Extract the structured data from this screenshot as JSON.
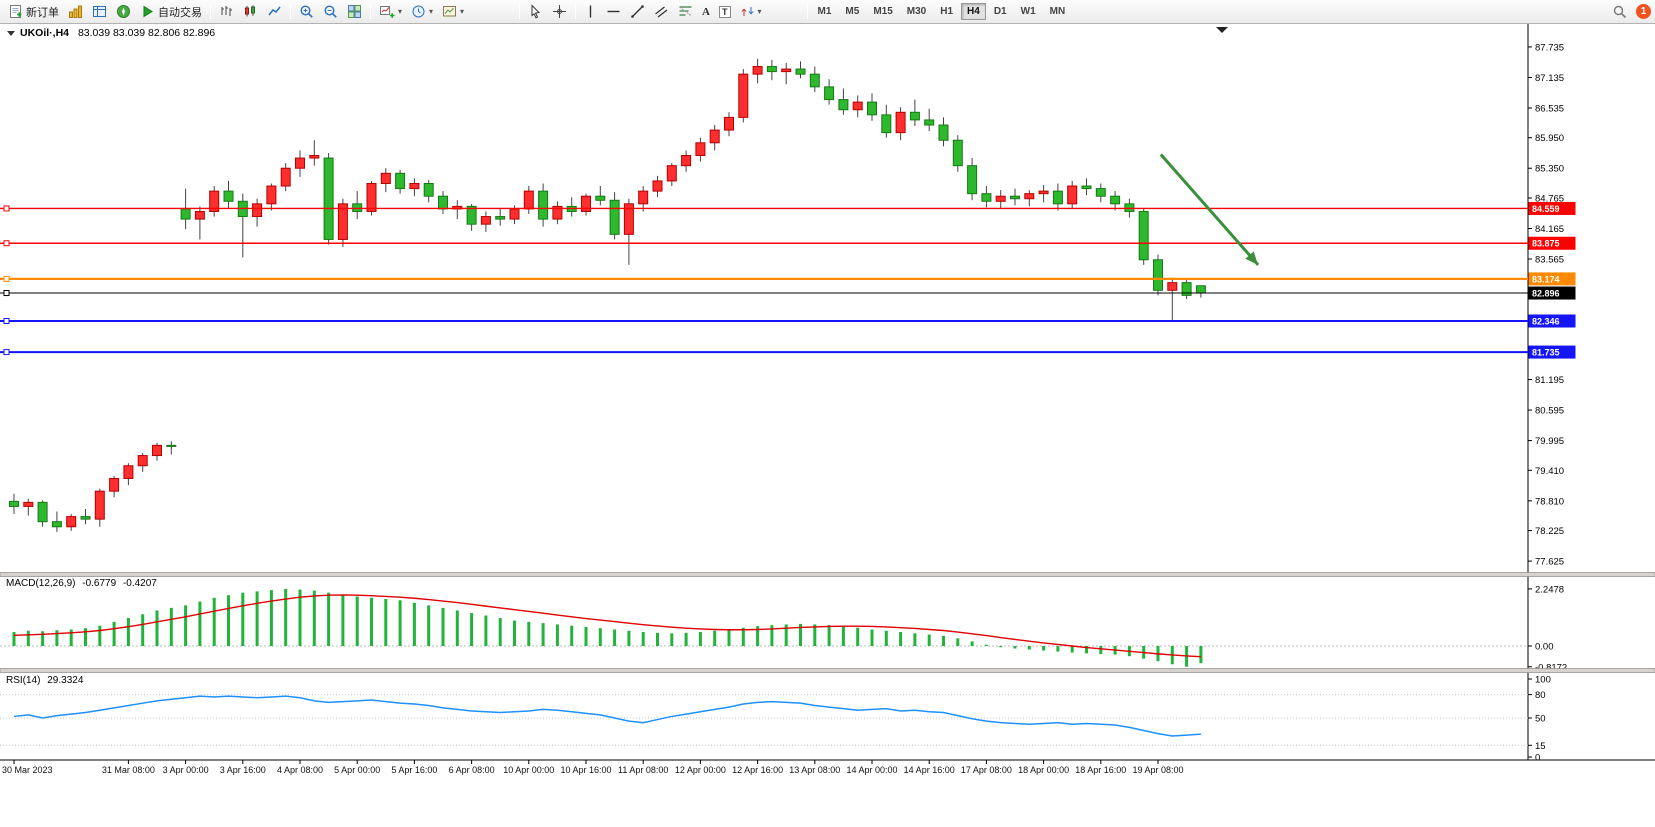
{
  "toolbar": {
    "new_order": "新订单",
    "autotrade": "自动交易",
    "timeframes": [
      "M1",
      "M5",
      "M15",
      "M30",
      "H1",
      "H4",
      "D1",
      "W1",
      "MN"
    ],
    "active_timeframe": "H4",
    "notification_count": "1",
    "glyphs": {
      "caret": "▾",
      "text_tool": "A",
      "label_tool": "T"
    }
  },
  "chart": {
    "symbol_title": "UKOil·,H4",
    "ohlc_text": "83.039 83.039 82.806 82.896",
    "current_price": 82.896,
    "price_axis_labels": [
      87.735,
      87.135,
      86.535,
      85.95,
      85.35,
      84.765,
      84.165,
      83.565,
      81.195,
      80.595,
      79.995,
      79.41,
      78.81,
      78.225,
      77.625
    ],
    "hlines": [
      {
        "price": 84.559,
        "color": "#ff0000",
        "width": 1.4
      },
      {
        "price": 83.875,
        "color": "#ff0000",
        "width": 1.4
      },
      {
        "price": 83.174,
        "color": "#ff8a00",
        "width": 2.2
      },
      {
        "price": 82.896,
        "color": "#000000",
        "width": 1.0
      },
      {
        "price": 82.346,
        "color": "#1414ff",
        "width": 2.0
      },
      {
        "price": 81.735,
        "color": "#1414ff",
        "width": 2.0
      }
    ],
    "arrow": {
      "from_index": 80.2,
      "from_price": 85.62,
      "to_index": 87.0,
      "to_price": 83.45,
      "color": "#3a8f3a"
    },
    "time_labels": [
      {
        "i": 0,
        "t": "30 Mar 2023"
      },
      {
        "i": 8,
        "t": "31 Mar 08:00"
      },
      {
        "i": 12,
        "t": "3 Apr 00:00"
      },
      {
        "i": 16,
        "t": "3 Apr 16:00"
      },
      {
        "i": 20,
        "t": "4 Apr 08:00"
      },
      {
        "i": 24,
        "t": "5 Apr 00:00"
      },
      {
        "i": 28,
        "t": "5 Apr 16:00"
      },
      {
        "i": 32,
        "t": "6 Apr 08:00"
      },
      {
        "i": 36,
        "t": "10 Apr 00:00"
      },
      {
        "i": 40,
        "t": "10 Apr 16:00"
      },
      {
        "i": 44,
        "t": "11 Apr 08:00"
      },
      {
        "i": 48,
        "t": "12 Apr 00:00"
      },
      {
        "i": 52,
        "t": "12 Apr 16:00"
      },
      {
        "i": 56,
        "t": "13 Apr 08:00"
      },
      {
        "i": 60,
        "t": "14 Apr 00:00"
      },
      {
        "i": 64,
        "t": "14 Apr 16:00"
      },
      {
        "i": 68,
        "t": "17 Apr 08:00"
      },
      {
        "i": 72,
        "t": "18 Apr 00:00"
      },
      {
        "i": 76,
        "t": "18 Apr 16:00"
      },
      {
        "i": 80,
        "t": "19 Apr 08:00"
      }
    ],
    "colors": {
      "bull": "#ff2e2e",
      "bull_border": "#b40000",
      "bear": "#2eb82e",
      "bear_border": "#157a15",
      "wick": "#444444",
      "macd_histogram": "#22b43a",
      "macd_signal": "#e00000",
      "rsi_line": "#1e90ff",
      "tag_text": "#ffffff"
    }
  },
  "chart_data": {
    "type": "candlestick",
    "symbol": "UKOil",
    "timeframe": "H4",
    "ylim": [
      77.45,
      87.95
    ],
    "candles_ohlc": [
      [
        78.8,
        78.95,
        78.55,
        78.7
      ],
      [
        78.7,
        78.85,
        78.52,
        78.78
      ],
      [
        78.78,
        78.82,
        78.3,
        78.4
      ],
      [
        78.4,
        78.6,
        78.2,
        78.3
      ],
      [
        78.3,
        78.55,
        78.22,
        78.5
      ],
      [
        78.5,
        78.65,
        78.35,
        78.45
      ],
      [
        78.45,
        79.05,
        78.3,
        79.0
      ],
      [
        79.0,
        79.3,
        78.88,
        79.25
      ],
      [
        79.25,
        79.55,
        79.12,
        79.5
      ],
      [
        79.5,
        79.75,
        79.38,
        79.7
      ],
      [
        79.7,
        79.95,
        79.6,
        79.9
      ],
      [
        79.9,
        79.98,
        79.72,
        79.88
      ],
      [
        84.55,
        84.95,
        84.15,
        84.35
      ],
      [
        84.35,
        84.6,
        83.95,
        84.5
      ],
      [
        84.5,
        85.0,
        84.4,
        84.9
      ],
      [
        84.9,
        85.1,
        84.55,
        84.7
      ],
      [
        84.7,
        84.85,
        83.6,
        84.4
      ],
      [
        84.4,
        84.75,
        84.2,
        84.65
      ],
      [
        84.65,
        85.05,
        84.52,
        85.0
      ],
      [
        85.0,
        85.45,
        84.9,
        85.35
      ],
      [
        85.35,
        85.7,
        85.18,
        85.55
      ],
      [
        85.55,
        85.9,
        85.4,
        85.6
      ],
      [
        85.55,
        85.65,
        83.85,
        83.95
      ],
      [
        83.95,
        84.75,
        83.8,
        84.65
      ],
      [
        84.65,
        84.9,
        84.35,
        84.5
      ],
      [
        84.5,
        85.1,
        84.42,
        85.05
      ],
      [
        85.05,
        85.35,
        84.88,
        85.25
      ],
      [
        85.25,
        85.32,
        84.85,
        84.95
      ],
      [
        84.95,
        85.15,
        84.8,
        85.05
      ],
      [
        85.05,
        85.12,
        84.68,
        84.8
      ],
      [
        84.8,
        84.9,
        84.45,
        84.55
      ],
      [
        84.55,
        84.72,
        84.35,
        84.6
      ],
      [
        84.6,
        84.65,
        84.12,
        84.25
      ],
      [
        84.25,
        84.5,
        84.1,
        84.4
      ],
      [
        84.4,
        84.55,
        84.22,
        84.35
      ],
      [
        84.35,
        84.62,
        84.25,
        84.55
      ],
      [
        84.55,
        85.0,
        84.45,
        84.9
      ],
      [
        84.9,
        85.05,
        84.2,
        84.35
      ],
      [
        84.35,
        84.7,
        84.25,
        84.6
      ],
      [
        84.6,
        84.78,
        84.4,
        84.5
      ],
      [
        84.5,
        84.85,
        84.42,
        84.8
      ],
      [
        84.8,
        85.0,
        84.62,
        84.72
      ],
      [
        84.72,
        84.88,
        83.95,
        84.05
      ],
      [
        84.05,
        84.75,
        83.45,
        84.65
      ],
      [
        84.65,
        85.0,
        84.5,
        84.9
      ],
      [
        84.9,
        85.2,
        84.78,
        85.1
      ],
      [
        85.1,
        85.45,
        85.0,
        85.4
      ],
      [
        85.4,
        85.7,
        85.28,
        85.6
      ],
      [
        85.6,
        85.95,
        85.48,
        85.85
      ],
      [
        85.85,
        86.2,
        85.7,
        86.1
      ],
      [
        86.1,
        86.45,
        85.98,
        86.35
      ],
      [
        86.35,
        87.3,
        86.25,
        87.2
      ],
      [
        87.2,
        87.5,
        87.02,
        87.35
      ],
      [
        87.35,
        87.48,
        87.08,
        87.25
      ],
      [
        87.25,
        87.42,
        87.0,
        87.3
      ],
      [
        87.3,
        87.45,
        87.12,
        87.2
      ],
      [
        87.2,
        87.35,
        86.85,
        86.95
      ],
      [
        86.95,
        87.1,
        86.6,
        86.7
      ],
      [
        86.7,
        86.92,
        86.4,
        86.5
      ],
      [
        86.5,
        86.78,
        86.35,
        86.65
      ],
      [
        86.65,
        86.82,
        86.28,
        86.4
      ],
      [
        86.4,
        86.6,
        85.95,
        86.05
      ],
      [
        86.05,
        86.55,
        85.9,
        86.45
      ],
      [
        86.45,
        86.7,
        86.18,
        86.3
      ],
      [
        86.3,
        86.52,
        86.08,
        86.2
      ],
      [
        86.2,
        86.35,
        85.78,
        85.9
      ],
      [
        85.9,
        86.0,
        85.28,
        85.4
      ],
      [
        85.4,
        85.55,
        84.72,
        84.85
      ],
      [
        84.85,
        85.0,
        84.58,
        84.7
      ],
      [
        84.7,
        84.92,
        84.55,
        84.8
      ],
      [
        84.8,
        84.95,
        84.62,
        84.75
      ],
      [
        84.75,
        84.92,
        84.6,
        84.85
      ],
      [
        84.85,
        85.02,
        84.68,
        84.9
      ],
      [
        84.9,
        85.05,
        84.52,
        84.65
      ],
      [
        84.65,
        85.1,
        84.55,
        85.0
      ],
      [
        85.0,
        85.15,
        84.82,
        84.95
      ],
      [
        84.95,
        85.05,
        84.68,
        84.8
      ],
      [
        84.8,
        84.9,
        84.52,
        84.65
      ],
      [
        84.65,
        84.75,
        84.38,
        84.5
      ],
      [
        84.5,
        84.56,
        83.45,
        83.55
      ],
      [
        83.55,
        83.65,
        82.85,
        82.95
      ],
      [
        82.95,
        83.2,
        82.35,
        83.1
      ],
      [
        83.1,
        83.16,
        82.78,
        82.85
      ],
      [
        83.039,
        83.039,
        82.806,
        82.896
      ]
    ],
    "indicators": {
      "macd": {
        "label": "MACD(12,26,9)",
        "main_value": "-0.6779",
        "signal_value": "-0.4207",
        "axis_labels": [
          "2.2478",
          "0.00",
          "-0.8172"
        ],
        "histogram": [
          0.55,
          0.6,
          0.58,
          0.62,
          0.65,
          0.7,
          0.8,
          0.95,
          1.1,
          1.25,
          1.4,
          1.5,
          1.6,
          1.75,
          1.9,
          2.0,
          2.1,
          2.15,
          2.2,
          2.2478,
          2.22,
          2.18,
          2.1,
          2.0,
          1.95,
          1.9,
          1.85,
          1.8,
          1.7,
          1.6,
          1.5,
          1.4,
          1.3,
          1.2,
          1.1,
          1.0,
          0.95,
          0.9,
          0.85,
          0.8,
          0.75,
          0.7,
          0.65,
          0.6,
          0.55,
          0.52,
          0.5,
          0.52,
          0.55,
          0.6,
          0.65,
          0.72,
          0.78,
          0.82,
          0.85,
          0.87,
          0.85,
          0.82,
          0.78,
          0.72,
          0.65,
          0.6,
          0.55,
          0.5,
          0.45,
          0.4,
          0.3,
          0.18,
          0.05,
          -0.05,
          -0.1,
          -0.14,
          -0.18,
          -0.22,
          -0.26,
          -0.29,
          -0.32,
          -0.34,
          -0.4,
          -0.5,
          -0.6,
          -0.72,
          -0.8172,
          -0.6779
        ],
        "signal": [
          0.42,
          0.44,
          0.46,
          0.49,
          0.52,
          0.56,
          0.61,
          0.68,
          0.76,
          0.85,
          0.95,
          1.05,
          1.15,
          1.26,
          1.37,
          1.48,
          1.58,
          1.68,
          1.77,
          1.85,
          1.92,
          1.97,
          2.0,
          2.01,
          2.0,
          1.98,
          1.95,
          1.92,
          1.88,
          1.83,
          1.77,
          1.71,
          1.64,
          1.57,
          1.5,
          1.43,
          1.36,
          1.29,
          1.22,
          1.15,
          1.08,
          1.02,
          0.96,
          0.9,
          0.84,
          0.79,
          0.74,
          0.7,
          0.67,
          0.65,
          0.64,
          0.64,
          0.65,
          0.67,
          0.7,
          0.73,
          0.75,
          0.77,
          0.78,
          0.78,
          0.77,
          0.75,
          0.72,
          0.69,
          0.65,
          0.61,
          0.55,
          0.48,
          0.41,
          0.33,
          0.26,
          0.19,
          0.12,
          0.06,
          0.0,
          -0.06,
          -0.11,
          -0.16,
          -0.21,
          -0.26,
          -0.31,
          -0.35,
          -0.39,
          -0.4207
        ]
      },
      "rsi": {
        "label": "RSI(14)",
        "value": "29.3324",
        "axis_labels": [
          100,
          80,
          50,
          15,
          0
        ],
        "levels": [
          80,
          50,
          15
        ],
        "values": [
          52,
          54,
          50,
          53,
          55,
          57,
          60,
          63,
          66,
          69,
          72,
          74,
          76,
          78,
          77,
          78,
          77,
          76,
          77,
          78,
          76,
          72,
          70,
          71,
          72,
          73,
          71,
          69,
          68,
          66,
          63,
          61,
          59,
          58,
          57,
          58,
          59,
          61,
          60,
          58,
          56,
          54,
          50,
          46,
          44,
          48,
          52,
          55,
          58,
          61,
          64,
          68,
          70,
          71,
          70,
          69,
          66,
          64,
          62,
          60,
          61,
          62,
          59,
          60,
          58,
          57,
          53,
          49,
          46,
          44,
          43,
          42,
          43,
          44,
          42,
          43,
          42,
          41,
          38,
          34,
          30,
          27,
          28,
          29.3324
        ]
      }
    }
  }
}
